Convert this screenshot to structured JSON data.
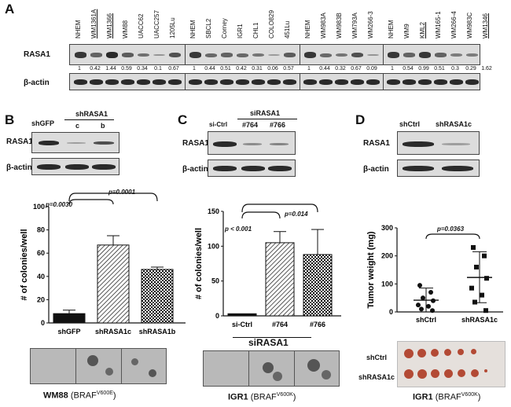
{
  "panel_A": {
    "letter": "A",
    "protein_label": "RASA1",
    "loading_label": "β-actin",
    "groups": [
      {
        "lanes": [
          "NHEM",
          "WM1361A",
          "WM1366",
          "WM88",
          "UACC62",
          "UACC257",
          "1205Lu"
        ],
        "underlined": [
          "WM1361A",
          "WM1366"
        ],
        "values": [
          "1",
          "0.42",
          "1.44",
          "0.59",
          "0.34",
          "0.1",
          "0.67"
        ],
        "band": [
          0.9,
          0.55,
          1.0,
          0.6,
          0.45,
          0.15,
          0.7
        ]
      },
      {
        "lanes": [
          "NHEM",
          "SBCL2",
          "Corney",
          "IGR1",
          "CHL1",
          "COLO829",
          "451Lu"
        ],
        "underlined": [],
        "values": [
          "1",
          "0.44",
          "0.51",
          "0.42",
          "0.31",
          "0.06",
          "0.57"
        ],
        "band": [
          0.9,
          0.5,
          0.55,
          0.5,
          0.4,
          0.1,
          0.6
        ]
      },
      {
        "lanes": [
          "NHEM",
          "WM983A",
          "WM983B",
          "WM793A",
          "WM266-3"
        ],
        "underlined": [],
        "values": [
          "1",
          "0.44",
          "0.32",
          "0.67",
          "0.09"
        ],
        "band": [
          0.9,
          0.5,
          0.4,
          0.7,
          0.15
        ]
      },
      {
        "lanes": [
          "NHEM",
          "WM9",
          "KML2",
          "WM165-1",
          "WM266-4",
          "WM983C",
          "WM1346"
        ],
        "underlined": [
          "KML2",
          "WM1346"
        ],
        "values": [
          "1",
          "0.54",
          "0.99",
          "0.51",
          "0.3",
          "0.29",
          "1.62"
        ],
        "band": [
          0.9,
          0.55,
          0.9,
          0.55,
          0.35,
          0.35,
          1.0
        ]
      }
    ]
  },
  "panel_B": {
    "letter": "B",
    "lane_header_left": "shGFP",
    "lane_header_group": "shRASA1",
    "lane_sub_c": "c",
    "lane_sub_b": "b",
    "protein_label": "RASA1",
    "loading_label": "β-actin",
    "p1": "p=0.0030",
    "p2": "p=0.0001",
    "caption_cell": "WM88",
    "caption_gene": "BRAF",
    "caption_mut": "V600E"
  },
  "panel_C": {
    "letter": "C",
    "group_header": "siRASA1",
    "lane_ctrl": "si-Ctrl",
    "lane_764": "#764",
    "lane_766": "#766",
    "protein_label": "RASA1",
    "loading_label": "β-actin",
    "p1": "p < 0.001",
    "p2": "p=0.014",
    "group_bottom": "siRASA1",
    "caption_cell": "IGR1",
    "caption_gene": "BRAF",
    "caption_mut": "V600K"
  },
  "panel_D": {
    "letter": "D",
    "lane_ctrl": "shCtrl",
    "lane_rasa": "shRASA1c",
    "protein_label": "RASA1",
    "loading_label": "β-actin",
    "p1": "p=0.0363",
    "tumor_row1": "shCtrl",
    "tumor_row2": "shRASA1c",
    "caption_cell": "IGR1",
    "caption_gene": "BRAF",
    "caption_mut": "V600K"
  },
  "chart_data": [
    {
      "type": "bar",
      "panel": "B",
      "ylabel": "# of colonies/well",
      "ylim": [
        0,
        100
      ],
      "yticks": [
        "0",
        "20",
        "40",
        "60",
        "80",
        "100"
      ],
      "categories": [
        "shGFP",
        "shRASA1c",
        "shRASA1b"
      ],
      "values": [
        8,
        67,
        46
      ],
      "errors": [
        3,
        8,
        2
      ],
      "patterns": [
        "solid",
        "diagonal",
        "checker"
      ]
    },
    {
      "type": "bar",
      "panel": "C",
      "ylabel": "# of colonies/well",
      "ylim": [
        0,
        150
      ],
      "yticks": [
        "0",
        "50",
        "100",
        "150"
      ],
      "categories": [
        "si-Ctrl",
        "#764",
        "#766"
      ],
      "values": [
        3,
        105,
        88
      ],
      "errors": [
        0,
        16,
        36
      ],
      "patterns": [
        "solid",
        "diagonal",
        "checker"
      ]
    },
    {
      "type": "scatter",
      "panel": "D",
      "ylabel": "Tumor weight (mg)",
      "ylim": [
        0,
        300
      ],
      "yticks": [
        "0",
        "100",
        "200",
        "300"
      ],
      "categories": [
        "shCtrl",
        "shRASA1c"
      ],
      "series": [
        {
          "category": "shCtrl",
          "marker": "circle",
          "mean": 42,
          "sd_low": 0,
          "sd_high": 85,
          "values": [
            95,
            70,
            50,
            40,
            25,
            20,
            10,
            5
          ]
        },
        {
          "category": "shRASA1c",
          "marker": "square",
          "mean": 123,
          "sd_low": 33,
          "sd_high": 215,
          "values": [
            230,
            200,
            160,
            120,
            85,
            60,
            35,
            5
          ]
        }
      ]
    }
  ]
}
